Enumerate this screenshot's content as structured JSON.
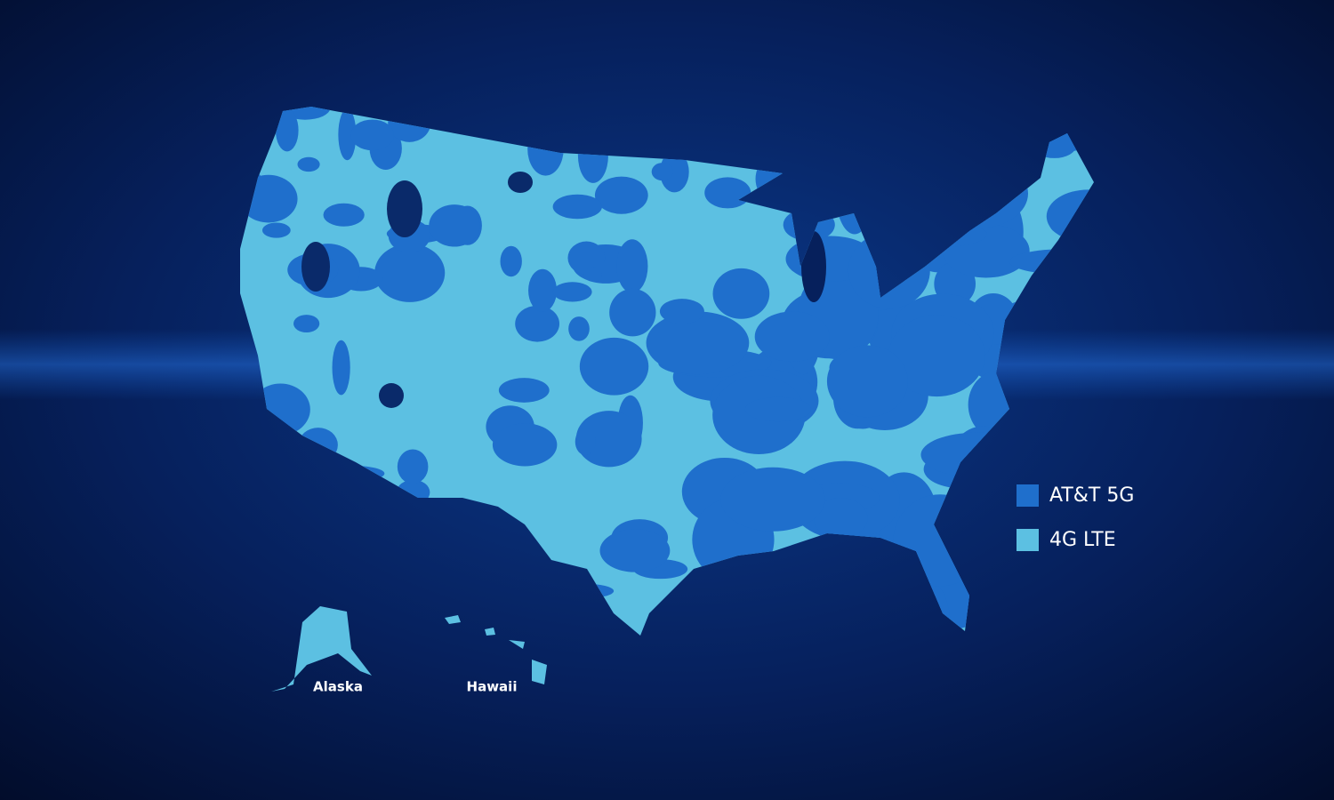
{
  "legend": [
    {
      "label": "AT&T 5G",
      "color": "#1f6fcc"
    },
    {
      "label": "4G LTE",
      "color": "#5cc0e2"
    }
  ],
  "insets": [
    {
      "label": "Alaska"
    },
    {
      "label": "Hawaii"
    }
  ]
}
